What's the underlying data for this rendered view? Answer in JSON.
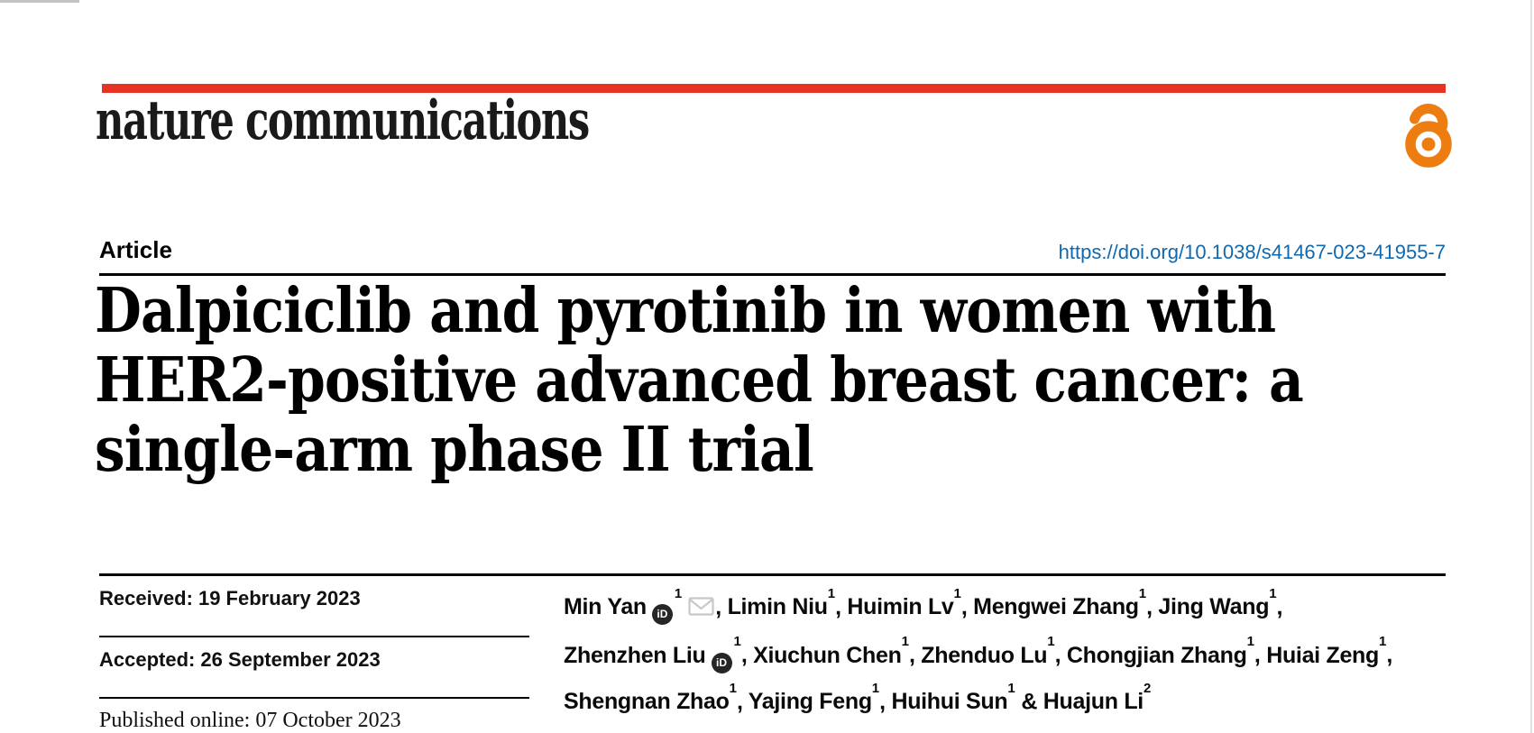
{
  "brand": {
    "journal_name": "nature communications",
    "bar_color": "#e63323",
    "open_access_color": "#ee7d11",
    "logo_color": "#1a1a1a"
  },
  "header": {
    "article_label": "Article",
    "doi_link": "https://doi.org/10.1038/s41467-023-41955-7",
    "doi_color": "#1268ac"
  },
  "title": {
    "lines": [
      "Dalpiciclib and pyrotinib in women with",
      "HER2-positive advanced breast cancer: a",
      "single-arm phase II trial"
    ]
  },
  "history": [
    {
      "label": "Received:",
      "value": "19 February 2023"
    },
    {
      "label": "Accepted:",
      "value": "26 September 2023"
    },
    {
      "label": "Published online:",
      "value": "07 October 2023"
    }
  ],
  "icons": {
    "open_access": "open-lock",
    "orcid_text": "iD",
    "email": "envelope"
  },
  "authors": {
    "list": [
      {
        "name": "Min Yan",
        "orcid": true,
        "sup": "1",
        "email": true
      },
      {
        "name": "Limin Niu",
        "sup": "1"
      },
      {
        "name": "Huimin Lv",
        "sup": "1"
      },
      {
        "name": "Mengwei Zhang",
        "sup": "1"
      },
      {
        "name": "Jing Wang",
        "sup": "1",
        "break_after": true
      },
      {
        "name": "Zhenzhen Liu",
        "orcid": true,
        "sup": "1"
      },
      {
        "name": "Xiuchun Chen",
        "sup": "1"
      },
      {
        "name": "Zhenduo Lu",
        "sup": "1"
      },
      {
        "name": "Chongjian Zhang",
        "sup": "1"
      },
      {
        "name": "Huiai Zeng",
        "sup": "1",
        "break_after": true
      },
      {
        "name": "Shengnan Zhao",
        "sup": "1"
      },
      {
        "name": "Yajing Feng",
        "sup": "1"
      },
      {
        "name": "Huihui Sun",
        "sup": "1",
        "joiner": " & "
      },
      {
        "name": "Huajun Li",
        "sup": "2",
        "last": true
      }
    ]
  }
}
